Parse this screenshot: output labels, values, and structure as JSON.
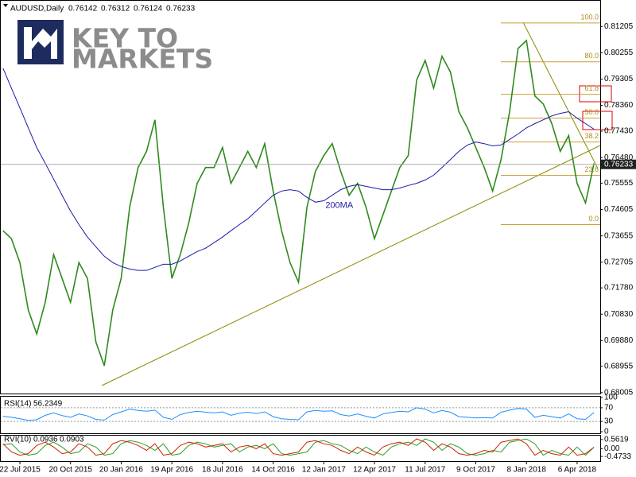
{
  "logo": {
    "line1": "KEY TO",
    "line2": "MARKETS"
  },
  "chart_data": [
    {
      "type": "line",
      "symbol": "AUDUSD,Daily",
      "ohlc": [
        0.76142,
        0.76312,
        0.76124,
        0.76233
      ],
      "categories": [
        null,
        null,
        "22 Jul 2015",
        null,
        null,
        null,
        null,
        null,
        "20 Oct 2015",
        null,
        null,
        null,
        null,
        null,
        "20 Jan 2016",
        null,
        null,
        null,
        null,
        null,
        "19 Apr 2016",
        null,
        null,
        null,
        null,
        null,
        "18 Jul 2016",
        null,
        null,
        null,
        null,
        null,
        "14 Oct 2016",
        null,
        null,
        null,
        null,
        null,
        "12 Jan 2017",
        null,
        null,
        null,
        null,
        null,
        "12 Apr 2017",
        null,
        null,
        null,
        null,
        null,
        "11 Jul 2017",
        null,
        null,
        null,
        null,
        null,
        "9 Oct 2017",
        null,
        null,
        null,
        null,
        null,
        "8 Jan 2018",
        null,
        null,
        null,
        null,
        null,
        "6 Apr 2018",
        null,
        null
      ],
      "series": [
        {
          "color": "#2f8a1e",
          "values": [
            0.7384,
            0.7355,
            0.7269,
            0.7098,
            0.7012,
            0.7126,
            0.7298,
            0.7212,
            0.7126,
            0.7269,
            0.7212,
            0.6983,
            0.6897,
            0.7098,
            0.7212,
            0.7469,
            0.7612,
            0.767,
            0.7784,
            0.7469,
            0.7212,
            0.7298,
            0.7412,
            0.7555,
            0.7612,
            0.7612,
            0.7684,
            0.7555,
            0.7612,
            0.767,
            0.7612,
            0.7698,
            0.7527,
            0.7384,
            0.7269,
            0.7198,
            0.7469,
            0.7598,
            0.7655,
            0.7698,
            0.7598,
            0.7512,
            0.7555,
            0.7469,
            0.7355,
            0.7441,
            0.7527,
            0.7612,
            0.7655,
            0.7927,
            0.7998,
            0.7898,
            0.8013,
            0.7956,
            0.7813,
            0.7755,
            0.7684,
            0.7612,
            0.7527,
            0.7641,
            0.7813,
            0.8041,
            0.807,
            0.787,
            0.7841,
            0.777,
            0.767,
            0.7727,
            0.7555,
            0.7484,
            0.7627
          ]
        },
        {
          "name": "200MA",
          "color": "#1a1aa8",
          "values": [
            0.797,
            0.7898,
            0.7827,
            0.7755,
            0.7684,
            0.7627,
            0.757,
            0.7512,
            0.7455,
            0.7406,
            0.7361,
            0.7326,
            0.7292,
            0.7269,
            0.7255,
            0.7246,
            0.7241,
            0.7241,
            0.7252,
            0.7263,
            0.7263,
            0.7275,
            0.7292,
            0.7309,
            0.7321,
            0.7341,
            0.7361,
            0.7384,
            0.7406,
            0.7427,
            0.7455,
            0.7484,
            0.7512,
            0.7527,
            0.7532,
            0.7527,
            0.7504,
            0.7487,
            0.7492,
            0.7512,
            0.7532,
            0.7544,
            0.755,
            0.7544,
            0.7538,
            0.7532,
            0.7532,
            0.7538,
            0.7547,
            0.7555,
            0.7567,
            0.7584,
            0.7612,
            0.7641,
            0.767,
            0.7693,
            0.7704,
            0.7698,
            0.769,
            0.7693,
            0.7713,
            0.7733,
            0.7755,
            0.777,
            0.7784,
            0.7798,
            0.7807,
            0.7813,
            0.779,
            0.777,
            0.775
          ]
        }
      ],
      "ylim": [
        0.6797,
        0.8213
      ],
      "yticks": [
        0.81205,
        0.80255,
        0.79305,
        {
          "value": 0.7836,
          "label": "0.78360"
        },
        {
          "value": 0.7743,
          "label": "0.77430"
        },
        {
          "value": 0.7648,
          "label": "0.76480"
        },
        0.75555,
        0.74605,
        0.73655,
        0.72705,
        {
          "value": 0.7178,
          "label": "0.71780"
        },
        {
          "value": 0.7083,
          "label": "0.70830"
        },
        {
          "value": 0.6988,
          "label": "0.69880"
        },
        0.68955,
        0.68005
      ],
      "fibonacci": [
        {
          "value": 0.8133,
          "label": "100.0"
        },
        {
          "value": 0.7993,
          "label": "80.0"
        },
        {
          "value": 0.7876,
          "label": "61.8"
        },
        {
          "value": 0.779,
          "label": "50.0"
        },
        {
          "value": 0.7704,
          "label": "38.2"
        },
        {
          "value": 0.7584,
          "label": "23.6"
        },
        {
          "value": 0.7406,
          "label": "0.0"
        }
      ]
    },
    {
      "type": "line",
      "name": "RSI(14)",
      "last": 56.2349,
      "series": [
        {
          "color": "#1e8fff",
          "values": [
            45,
            42,
            38,
            33,
            35,
            48,
            55,
            47,
            42,
            52,
            46,
            36,
            34,
            50,
            58,
            66,
            62,
            60,
            63,
            42,
            36,
            50,
            56,
            60,
            57,
            55,
            58,
            48,
            54,
            57,
            53,
            58,
            44,
            38,
            36,
            35,
            58,
            62,
            60,
            61,
            50,
            46,
            52,
            45,
            40,
            52,
            56,
            60,
            58,
            70,
            66,
            55,
            62,
            57,
            44,
            42,
            40,
            41,
            40,
            57,
            63,
            68,
            66,
            42,
            48,
            44,
            40,
            52,
            38,
            36,
            56
          ]
        }
      ],
      "ylim": [
        0,
        100
      ],
      "yticks": [
        100,
        70,
        30,
        0
      ]
    },
    {
      "type": "line",
      "name": "RVI(10)",
      "last": [
        0.0936,
        0.0903
      ],
      "series": [
        {
          "color": "#2a9d2a",
          "values": [
            0.25,
            0.3,
            -0.2,
            -0.4,
            -0.3,
            0.2,
            0.4,
            0.1,
            -0.3,
            -0.2,
            0.3,
            0.1,
            -0.4,
            -0.3,
            0.3,
            0.5,
            0.4,
            0.2,
            -0.1,
            0.3,
            -0.4,
            -0.3,
            0.2,
            0.4,
            0.3,
            0.1,
            0.2,
            0.3,
            -0.2,
            0.1,
            0.2,
            0.0,
            0.3,
            -0.3,
            -0.4,
            -0.3,
            -0.2,
            0.4,
            0.5,
            0.3,
            0.2,
            -0.1,
            -0.3,
            0.1,
            -0.2,
            -0.4,
            0.1,
            0.3,
            0.4,
            0.2,
            0.6,
            0.4,
            -0.1,
            0.3,
            0.1,
            -0.3,
            -0.4,
            -0.3,
            -0.1,
            -0.2,
            0.4,
            0.5,
            0.6,
            0.3,
            -0.4,
            -0.1,
            -0.3,
            -0.4,
            0.1,
            -0.4,
            0.09
          ]
        },
        {
          "color": "#cc2200",
          "values": [
            0.3,
            -0.2,
            -0.4,
            -0.3,
            0.2,
            0.4,
            0.1,
            -0.3,
            -0.2,
            0.3,
            0.1,
            -0.4,
            -0.3,
            0.3,
            0.5,
            0.4,
            0.2,
            -0.1,
            0.3,
            -0.4,
            -0.3,
            0.2,
            0.4,
            0.3,
            0.1,
            0.2,
            0.3,
            -0.2,
            0.1,
            0.2,
            0.0,
            0.3,
            -0.3,
            -0.4,
            -0.3,
            -0.2,
            0.4,
            0.5,
            0.3,
            0.2,
            -0.1,
            -0.3,
            0.1,
            -0.2,
            -0.4,
            0.1,
            0.3,
            0.4,
            0.2,
            0.6,
            0.4,
            -0.1,
            0.3,
            0.1,
            -0.3,
            -0.4,
            -0.3,
            -0.1,
            -0.2,
            0.4,
            0.5,
            0.6,
            0.3,
            -0.4,
            -0.1,
            -0.3,
            -0.4,
            0.1,
            -0.4,
            -0.3,
            0.09
          ]
        }
      ],
      "ylim": [
        -0.76,
        0.75
      ],
      "yticks": [
        0.5619,
        {
          "value": 0,
          "label": "0.00"
        },
        -0.4733
      ]
    }
  ]
}
